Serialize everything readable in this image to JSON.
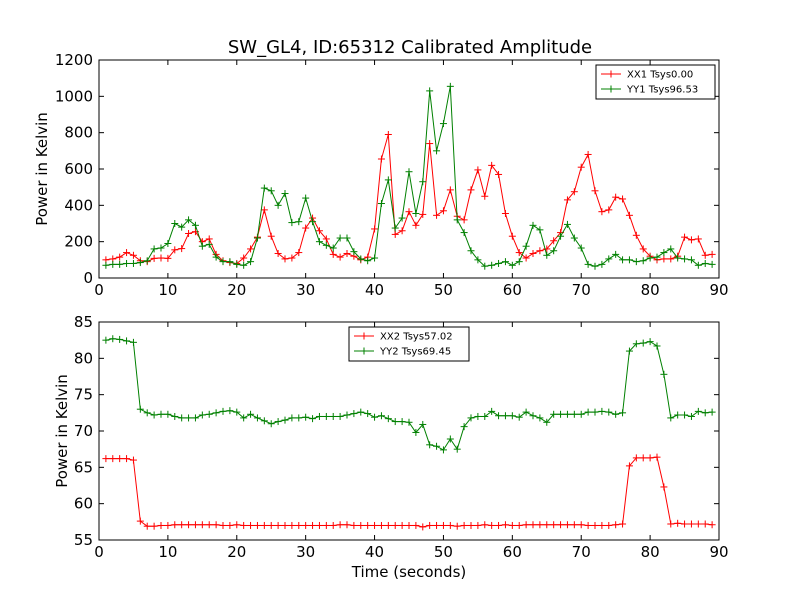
{
  "figure": {
    "title": "SW_GL4, ID:65312 Calibrated Amplitude",
    "background": "#ffffff"
  },
  "chart_data": [
    {
      "type": "line",
      "title": "SW_GL4, ID:65312 Calibrated Amplitude",
      "xlabel": "",
      "ylabel": "Power in Kelvin",
      "xlim": [
        0,
        90
      ],
      "ylim": [
        0,
        1200
      ],
      "xticks": [
        0,
        10,
        20,
        30,
        40,
        50,
        60,
        70,
        80,
        90
      ],
      "yticks": [
        0,
        200,
        400,
        600,
        800,
        1000,
        1200
      ],
      "grid": false,
      "legend_position": "top-right",
      "series": [
        {
          "name": "XX1 Tsys0.00",
          "color": "#ff0000",
          "marker": "plus",
          "x": [
            1,
            2,
            3,
            4,
            5,
            6,
            7,
            8,
            9,
            10,
            11,
            12,
            13,
            14,
            15,
            16,
            17,
            18,
            19,
            20,
            21,
            22,
            23,
            24,
            25,
            26,
            27,
            28,
            29,
            30,
            31,
            32,
            33,
            34,
            35,
            36,
            37,
            38,
            39,
            40,
            41,
            42,
            43,
            44,
            45,
            46,
            47,
            48,
            49,
            50,
            51,
            52,
            53,
            54,
            55,
            56,
            57,
            58,
            59,
            60,
            61,
            62,
            63,
            64,
            65,
            66,
            67,
            68,
            69,
            70,
            71,
            72,
            73,
            74,
            75,
            76,
            77,
            78,
            79,
            80,
            81,
            82,
            83,
            84,
            85,
            86,
            87,
            88,
            89
          ],
          "y": [
            100,
            105,
            115,
            140,
            125,
            95,
            90,
            108,
            110,
            108,
            155,
            162,
            245,
            255,
            200,
            215,
            130,
            95,
            85,
            80,
            110,
            160,
            225,
            375,
            230,
            135,
            105,
            110,
            140,
            275,
            330,
            260,
            215,
            130,
            115,
            135,
            120,
            100,
            115,
            270,
            655,
            790,
            240,
            260,
            365,
            290,
            350,
            740,
            345,
            370,
            485,
            340,
            320,
            485,
            595,
            450,
            620,
            570,
            355,
            230,
            140,
            110,
            135,
            150,
            160,
            205,
            250,
            430,
            475,
            610,
            680,
            480,
            365,
            375,
            445,
            435,
            345,
            235,
            160,
            120,
            100,
            105,
            105,
            120,
            225,
            210,
            215,
            125,
            130
          ]
        },
        {
          "name": "YY1 Tsys96.53",
          "color": "#008000",
          "marker": "plus",
          "x": [
            1,
            2,
            3,
            4,
            5,
            6,
            7,
            8,
            9,
            10,
            11,
            12,
            13,
            14,
            15,
            16,
            17,
            18,
            19,
            20,
            21,
            22,
            23,
            24,
            25,
            26,
            27,
            28,
            29,
            30,
            31,
            32,
            33,
            34,
            35,
            36,
            37,
            38,
            39,
            40,
            41,
            42,
            43,
            44,
            45,
            46,
            47,
            48,
            49,
            50,
            51,
            52,
            53,
            54,
            55,
            56,
            57,
            58,
            59,
            60,
            61,
            62,
            63,
            64,
            65,
            66,
            67,
            68,
            69,
            70,
            71,
            72,
            73,
            74,
            75,
            76,
            77,
            78,
            79,
            80,
            81,
            82,
            83,
            84,
            85,
            86,
            87,
            88,
            89
          ],
          "y": [
            70,
            75,
            75,
            80,
            80,
            85,
            95,
            160,
            165,
            190,
            300,
            280,
            320,
            290,
            175,
            185,
            115,
            90,
            90,
            75,
            70,
            90,
            220,
            495,
            480,
            400,
            465,
            305,
            310,
            440,
            310,
            200,
            180,
            165,
            220,
            220,
            145,
            105,
            95,
            110,
            410,
            540,
            275,
            330,
            585,
            355,
            530,
            1030,
            700,
            850,
            1055,
            320,
            250,
            150,
            100,
            65,
            70,
            80,
            90,
            70,
            90,
            175,
            290,
            265,
            125,
            150,
            230,
            295,
            220,
            165,
            75,
            65,
            75,
            105,
            130,
            100,
            100,
            90,
            95,
            110,
            115,
            140,
            160,
            110,
            105,
            100,
            70,
            80,
            75
          ]
        }
      ]
    },
    {
      "type": "line",
      "title": "",
      "xlabel": "Time (seconds)",
      "ylabel": "Power in Kelvin",
      "xlim": [
        0,
        90
      ],
      "ylim": [
        55,
        85
      ],
      "xticks": [
        0,
        10,
        20,
        30,
        40,
        50,
        60,
        70,
        80,
        90
      ],
      "yticks": [
        55,
        60,
        65,
        70,
        75,
        80,
        85
      ],
      "grid": false,
      "legend_position": "top-center",
      "series": [
        {
          "name": "XX2 Tsys57.02",
          "color": "#ff0000",
          "marker": "plus",
          "x": [
            1,
            2,
            3,
            4,
            5,
            6,
            7,
            8,
            9,
            10,
            11,
            12,
            13,
            14,
            15,
            16,
            17,
            18,
            19,
            20,
            21,
            22,
            23,
            24,
            25,
            26,
            27,
            28,
            29,
            30,
            31,
            32,
            33,
            34,
            35,
            36,
            37,
            38,
            39,
            40,
            41,
            42,
            43,
            44,
            45,
            46,
            47,
            48,
            49,
            50,
            51,
            52,
            53,
            54,
            55,
            56,
            57,
            58,
            59,
            60,
            61,
            62,
            63,
            64,
            65,
            66,
            67,
            68,
            69,
            70,
            71,
            72,
            73,
            74,
            75,
            76,
            77,
            78,
            79,
            80,
            81,
            82,
            83,
            84,
            85,
            86,
            87,
            88,
            89
          ],
          "y": [
            66.2,
            66.2,
            66.2,
            66.2,
            66.0,
            57.6,
            56.9,
            56.9,
            57.0,
            57.0,
            57.1,
            57.1,
            57.1,
            57.1,
            57.1,
            57.1,
            57.1,
            57.0,
            57.0,
            57.1,
            57.0,
            57.0,
            57.0,
            57.0,
            57.0,
            57.0,
            57.0,
            57.0,
            57.0,
            57.0,
            57.0,
            57.0,
            57.0,
            57.0,
            57.1,
            57.1,
            57.0,
            57.0,
            57.0,
            57.0,
            57.0,
            57.0,
            57.0,
            57.0,
            57.0,
            57.0,
            56.8,
            57.0,
            57.0,
            57.0,
            57.0,
            56.9,
            57.0,
            57.0,
            57.0,
            57.1,
            57.0,
            57.0,
            57.1,
            57.0,
            57.0,
            57.1,
            57.1,
            57.1,
            57.1,
            57.1,
            57.1,
            57.1,
            57.1,
            57.1,
            57.0,
            57.0,
            57.0,
            57.0,
            57.1,
            57.2,
            65.2,
            66.3,
            66.3,
            66.3,
            66.4,
            62.3,
            57.2,
            57.3,
            57.2,
            57.2,
            57.2,
            57.2,
            57.1
          ]
        },
        {
          "name": "YY2 Tsys69.45",
          "color": "#008000",
          "marker": "plus",
          "x": [
            1,
            2,
            3,
            4,
            5,
            6,
            7,
            8,
            9,
            10,
            11,
            12,
            13,
            14,
            15,
            16,
            17,
            18,
            19,
            20,
            21,
            22,
            23,
            24,
            25,
            26,
            27,
            28,
            29,
            30,
            31,
            32,
            33,
            34,
            35,
            36,
            37,
            38,
            39,
            40,
            41,
            42,
            43,
            44,
            45,
            46,
            47,
            48,
            49,
            50,
            51,
            52,
            53,
            54,
            55,
            56,
            57,
            58,
            59,
            60,
            61,
            62,
            63,
            64,
            65,
            66,
            67,
            68,
            69,
            70,
            71,
            72,
            73,
            74,
            75,
            76,
            77,
            78,
            79,
            80,
            81,
            82,
            83,
            84,
            85,
            86,
            87,
            88,
            89
          ],
          "y": [
            82.5,
            82.7,
            82.6,
            82.4,
            82.2,
            73.0,
            72.5,
            72.2,
            72.3,
            72.3,
            72.0,
            71.8,
            71.8,
            71.8,
            72.2,
            72.3,
            72.5,
            72.7,
            72.8,
            72.6,
            71.8,
            72.3,
            71.8,
            71.4,
            71.0,
            71.3,
            71.5,
            71.8,
            71.8,
            71.9,
            71.7,
            72.0,
            72.0,
            72.0,
            72.0,
            72.2,
            72.4,
            72.6,
            72.4,
            71.9,
            72.1,
            71.7,
            71.3,
            71.3,
            71.2,
            69.8,
            70.9,
            68.1,
            67.9,
            67.4,
            68.9,
            67.5,
            70.6,
            71.8,
            72.0,
            72.0,
            72.7,
            72.1,
            72.1,
            72.1,
            71.9,
            72.6,
            72.1,
            71.8,
            71.2,
            72.3,
            72.3,
            72.3,
            72.3,
            72.3,
            72.6,
            72.6,
            72.7,
            72.6,
            72.3,
            72.5,
            81.0,
            82.0,
            82.1,
            82.3,
            81.7,
            77.8,
            71.8,
            72.2,
            72.2,
            72.0,
            72.7,
            72.5,
            72.6
          ]
        }
      ]
    }
  ]
}
